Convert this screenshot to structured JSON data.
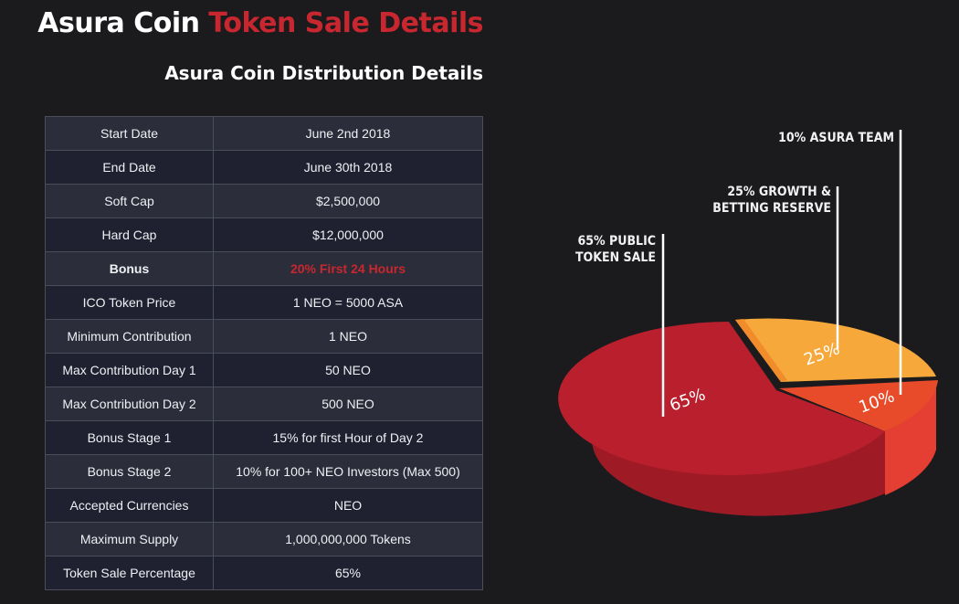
{
  "header": {
    "title_main": "Asura Coin",
    "title_accent": "Token Sale Details",
    "subtitle": "Asura Coin Distribution Details"
  },
  "colors": {
    "accent": "#c9272f",
    "public_sale": "#b91f2c",
    "growth_reserve": "#f6a83b",
    "team": "#e84b2a"
  },
  "table": {
    "rows": [
      {
        "label": "Start Date",
        "value": "June 2nd 2018"
      },
      {
        "label": "End Date",
        "value": "June 30th 2018"
      },
      {
        "label": "Soft Cap",
        "value": "$2,500,000"
      },
      {
        "label": "Hard Cap",
        "value": "$12,000,000"
      },
      {
        "label": "Bonus",
        "value": "20% First 24 Hours"
      },
      {
        "label": "ICO Token Price",
        "value": "1 NEO = 5000 ASA"
      },
      {
        "label": "Minimum Contribution",
        "value": "1 NEO"
      },
      {
        "label": "Max Contribution Day 1",
        "value": "50 NEO"
      },
      {
        "label": "Max Contribution Day 2",
        "value": "500 NEO"
      },
      {
        "label": "Bonus Stage 1",
        "value": "15% for first Hour of Day 2"
      },
      {
        "label": "Bonus Stage 2",
        "value": "10% for 100+ NEO Investors (Max 500)"
      },
      {
        "label": "Accepted Currencies",
        "value": "NEO"
      },
      {
        "label": "Maximum Supply",
        "value": "1,000,000,000 Tokens"
      },
      {
        "label": "Token Sale Percentage",
        "value": "65%"
      }
    ]
  },
  "chart_data": {
    "type": "pie",
    "categories": [
      "PUBLIC TOKEN SALE",
      "GROWTH & BETTING RESERVE",
      "ASURA TEAM"
    ],
    "values": [
      65,
      25,
      10
    ],
    "slice_labels": [
      "65%",
      "25%",
      "10%"
    ],
    "callouts": {
      "public": [
        "65% PUBLIC",
        "TOKEN SALE"
      ],
      "growth": [
        "25% GROWTH &",
        "BETTING RESERVE"
      ],
      "team": [
        "10% ASURA TEAM"
      ]
    }
  }
}
